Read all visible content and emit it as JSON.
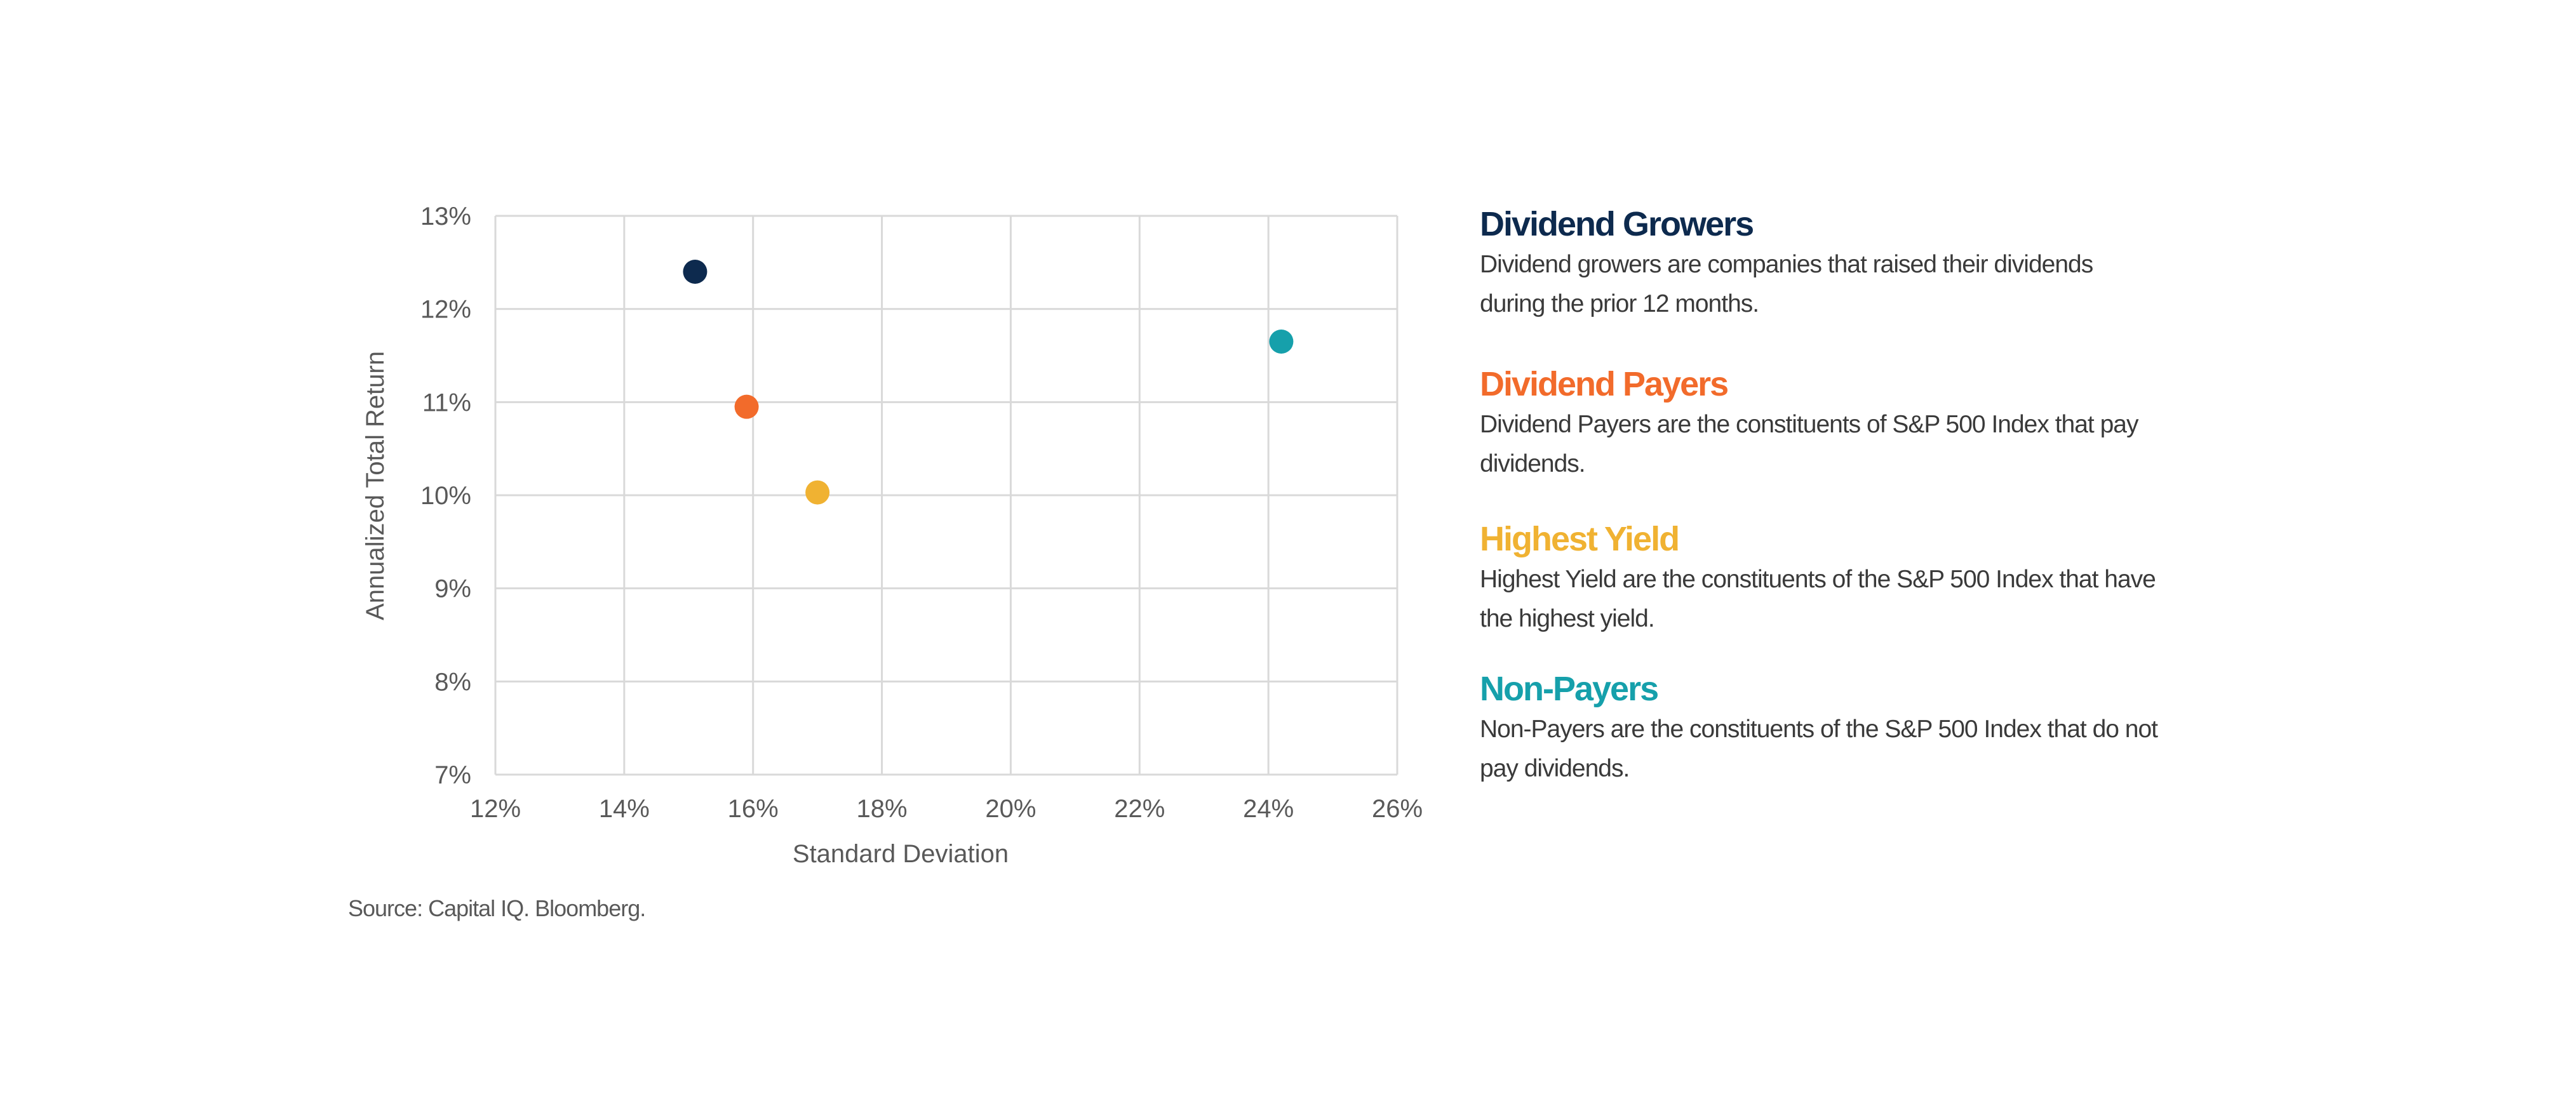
{
  "chart_data": {
    "type": "scatter",
    "title": "",
    "xlabel": "Standard Deviation",
    "ylabel": "Annualized Total Return",
    "xlim": [
      12,
      26
    ],
    "ylim": [
      7,
      13
    ],
    "x_ticks": [
      "12%",
      "14%",
      "16%",
      "18%",
      "20%",
      "22%",
      "24%",
      "26%"
    ],
    "y_ticks": [
      "7%",
      "8%",
      "9%",
      "10%",
      "11%",
      "12%",
      "13%"
    ],
    "grid": true,
    "series": [
      {
        "name": "Dividend Growers",
        "x": 15.1,
        "y": 12.4,
        "color": "#0d2a4e"
      },
      {
        "name": "Dividend Payers",
        "x": 15.9,
        "y": 10.95,
        "color": "#f26b2b"
      },
      {
        "name": "Highest Yield",
        "x": 17.0,
        "y": 10.03,
        "color": "#f0b232"
      },
      {
        "name": "Non-Payers",
        "x": 24.2,
        "y": 11.65,
        "color": "#16a0ab"
      }
    ]
  },
  "legend": [
    {
      "title": "Dividend Growers",
      "color": "#0d2a4e",
      "line1": "Dividend growers are companies that raised their dividends",
      "line2": "during the prior 12 months."
    },
    {
      "title": "Dividend Payers",
      "color": "#f26b2b",
      "line1": "Dividend Payers are the constituents of S&P 500 Index that pay",
      "line2": "dividends."
    },
    {
      "title": "Highest Yield",
      "color": "#f0b232",
      "line1": "Highest Yield are the constituents of the S&P 500 Index that have",
      "line2": "the highest yield."
    },
    {
      "title": "Non-Payers",
      "color": "#16a0ab",
      "line1": "Non-Payers are the constituents of the S&P 500 Index that do not",
      "line2": "pay dividends."
    }
  ],
  "source": "Source: Capital IQ. Bloomberg."
}
